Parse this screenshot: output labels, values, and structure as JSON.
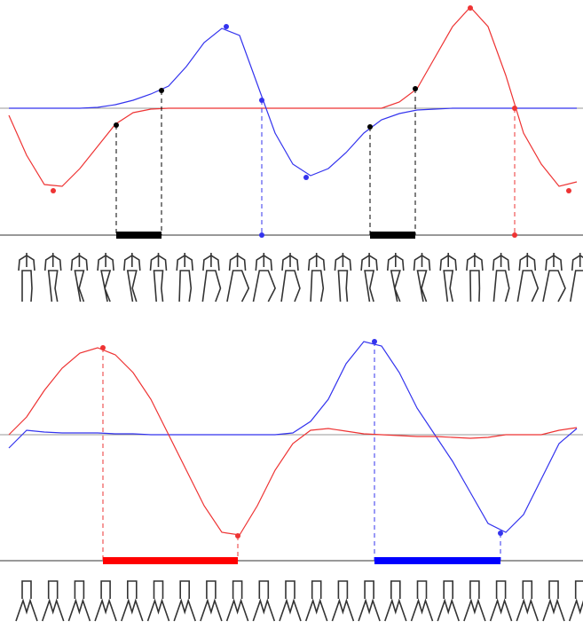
{
  "chart_data": [
    {
      "type": "line",
      "x": [
        1,
        3,
        5,
        7,
        9,
        11,
        13,
        15,
        17,
        19,
        21,
        23,
        25,
        27,
        29,
        31,
        33,
        35,
        37,
        39,
        41,
        43,
        45,
        47,
        49,
        51,
        53,
        55,
        57,
        59,
        61,
        63,
        65
      ],
      "xlim": [
        0,
        65.7
      ],
      "ylim": [
        -14.3,
        12.2
      ],
      "series": [
        {
          "color": "#3333ee",
          "values": [
            0,
            0,
            0,
            0,
            0,
            0.1,
            0.4,
            0.9,
            1.6,
            2.5,
            4.7,
            7.4,
            9.0,
            8.2,
            2.7,
            -2.8,
            -6.3,
            -7.6,
            -6.8,
            -5.0,
            -2.8,
            -1.3,
            -0.6,
            -0.2,
            -0.1,
            0,
            0,
            0,
            0,
            0,
            0,
            0,
            0
          ]
        },
        {
          "color": "#ee3333",
          "values": [
            -0.8,
            -5.3,
            -8.6,
            -8.8,
            -6.8,
            -4.3,
            -1.8,
            -0.5,
            -0.1,
            0,
            0,
            0,
            0,
            0,
            0,
            0,
            0,
            0,
            0,
            0,
            0,
            0,
            0.7,
            2.2,
            5.7,
            9.2,
            11.4,
            9.2,
            3.7,
            -2.8,
            -6.3,
            -8.8,
            -8.3
          ]
        }
      ]
    },
    {
      "type": "line",
      "x": [
        1,
        3,
        5,
        7,
        9,
        11,
        13,
        15,
        17,
        19,
        21,
        23,
        25,
        27,
        29,
        31,
        33,
        35,
        37,
        39,
        41,
        43,
        45,
        47,
        49,
        51,
        53,
        55,
        57,
        59,
        61,
        63,
        65
      ],
      "xlim": [
        0,
        65.7
      ],
      "ylim": [
        -14.2,
        11.5
      ],
      "series": [
        {
          "color": "#ee3333",
          "values": [
            0,
            2,
            5,
            7.5,
            9.2,
            9.8,
            9,
            7,
            4,
            0,
            -4,
            -8,
            -11,
            -11.3,
            -8,
            -4,
            -1,
            0.5,
            0.7,
            0.4,
            0.1,
            0,
            -0.1,
            -0.2,
            -0.2,
            -0.3,
            -0.4,
            -0.3,
            0,
            0,
            0,
            0.5,
            0.8
          ]
        },
        {
          "color": "#3333ee",
          "values": [
            -1.5,
            0.5,
            0.3,
            0.2,
            0.2,
            0.2,
            0.1,
            0.1,
            0,
            0,
            0,
            0,
            0,
            0,
            0,
            0,
            0.2,
            1.5,
            4,
            8,
            10.5,
            10,
            7,
            3,
            0,
            -3,
            -6.5,
            -10,
            -11,
            -9,
            -5,
            -1,
            0.7
          ]
        }
      ]
    }
  ]
}
